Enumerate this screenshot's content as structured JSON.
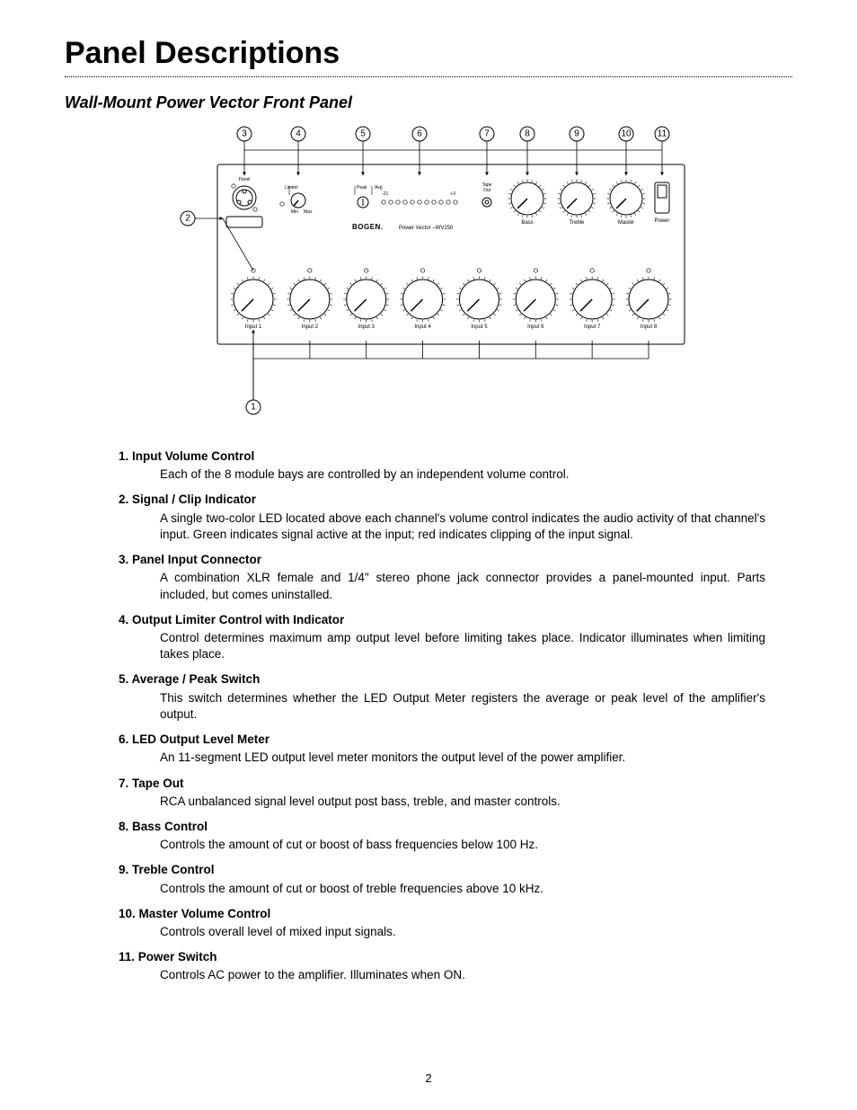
{
  "page": {
    "title": "Panel Descriptions",
    "subtitle": "Wall-Mount Power Vector Front Panel",
    "page_number": "2"
  },
  "diagram": {
    "brand": "BOGEN",
    "model_prefix": "Power Vector –",
    "model": "WV250",
    "top_callouts": [
      "3",
      "4",
      "5",
      "6",
      "7",
      "8",
      "9",
      "10",
      "11"
    ],
    "left_callout": "2",
    "bottom_callout": "1",
    "input_labels": [
      "Input 1",
      "Input 2",
      "Input 3",
      "Input 4",
      "Input 5",
      "Input 6",
      "Input 7",
      "Input 8"
    ],
    "upper_labels": {
      "limiter": "Limiter",
      "min": "Min",
      "max": "Max",
      "peak": "Peak",
      "avg": "Avg",
      "tape_out": "Tape\nOut",
      "bass": "Bass",
      "treble": "Treble",
      "master": "Master",
      "power": "Power"
    }
  },
  "descriptions": [
    {
      "num": "1",
      "title": "Input Volume Control",
      "body": "Each of the 8 module bays are controlled by an independent volume control."
    },
    {
      "num": "2",
      "title": "Signal / Clip Indicator",
      "body": "A single two-color LED located above each channel's volume control indicates the audio activity of that channel's input. Green indicates signal active at the input; red indicates clipping of the input signal."
    },
    {
      "num": "3",
      "title": "Panel Input Connector",
      "body": "A combination XLR female and 1/4\" stereo phone jack connector provides a panel-mounted input. Parts included, but comes uninstalled."
    },
    {
      "num": "4",
      "title": "Output Limiter Control with Indicator",
      "body": "Control determines maximum amp output level before limiting takes place. Indicator illuminates when limiting takes place."
    },
    {
      "num": "5",
      "title": "Average / Peak Switch",
      "body": "This switch determines whether the LED Output Meter registers the average or peak level of the amplifier's output."
    },
    {
      "num": "6",
      "title": "LED Output Level Meter",
      "body": "An 11-segment LED output level meter monitors the output level of the power amplifier."
    },
    {
      "num": "7",
      "title": "Tape Out",
      "body": "RCA unbalanced signal level output post bass, treble, and master controls."
    },
    {
      "num": "8",
      "title": "Bass Control",
      "body": "Controls the amount of cut or boost of bass frequencies below 100 Hz."
    },
    {
      "num": "9",
      "title": "Treble Control",
      "body": "Controls the amount of cut or boost of treble frequencies above 10 kHz."
    },
    {
      "num": "10",
      "title": "Master Volume Control",
      "body": "Controls overall level of mixed input signals."
    },
    {
      "num": "11",
      "title": "Power Switch",
      "body": "Controls AC power to the amplifier. Illuminates when ON."
    }
  ]
}
